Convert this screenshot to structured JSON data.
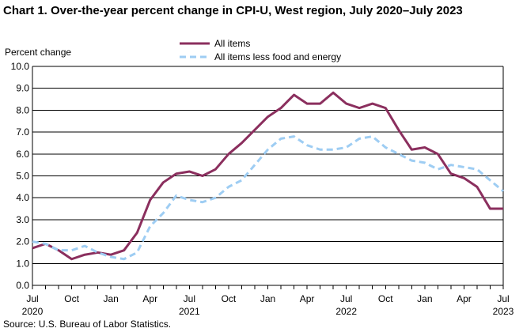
{
  "chart_data": {
    "type": "line",
    "title": "Chart 1. Over-the-year percent change in CPI-U, West region, July 2020–July 2023",
    "ylabel": "Percent change",
    "xlabel": "",
    "ylim": [
      0,
      10
    ],
    "yticks": [
      "0.0",
      "1.0",
      "2.0",
      "3.0",
      "4.0",
      "5.0",
      "6.0",
      "7.0",
      "8.0",
      "9.0",
      "10.0"
    ],
    "xtick_labels": [
      {
        "month": "Jul",
        "year": "2020"
      },
      {
        "month": "Oct",
        "year": ""
      },
      {
        "month": "Jan",
        "year": ""
      },
      {
        "month": "Apr",
        "year": ""
      },
      {
        "month": "Jul",
        "year": "2021"
      },
      {
        "month": "Oct",
        "year": ""
      },
      {
        "month": "Jan",
        "year": ""
      },
      {
        "month": "Apr",
        "year": ""
      },
      {
        "month": "Jul",
        "year": "2022"
      },
      {
        "month": "Oct",
        "year": ""
      },
      {
        "month": "Jan",
        "year": ""
      },
      {
        "month": "Apr",
        "year": ""
      },
      {
        "month": "Jul",
        "year": "2023"
      }
    ],
    "x": [
      "2020-07",
      "2020-08",
      "2020-09",
      "2020-10",
      "2020-11",
      "2020-12",
      "2021-01",
      "2021-02",
      "2021-03",
      "2021-04",
      "2021-05",
      "2021-06",
      "2021-07",
      "2021-08",
      "2021-09",
      "2021-10",
      "2021-11",
      "2021-12",
      "2022-01",
      "2022-02",
      "2022-03",
      "2022-04",
      "2022-05",
      "2022-06",
      "2022-07",
      "2022-08",
      "2022-09",
      "2022-10",
      "2022-11",
      "2022-12",
      "2023-01",
      "2023-02",
      "2023-03",
      "2023-04",
      "2023-05",
      "2023-06",
      "2023-07"
    ],
    "series": [
      {
        "name": "All items",
        "color": "#8b2f5e",
        "style": "solid",
        "values": [
          1.7,
          1.9,
          1.6,
          1.2,
          1.4,
          1.5,
          1.4,
          1.6,
          2.4,
          3.9,
          4.7,
          5.1,
          5.2,
          5.0,
          5.3,
          6.0,
          6.5,
          7.1,
          7.7,
          8.1,
          8.7,
          8.3,
          8.3,
          8.8,
          8.3,
          8.1,
          8.3,
          8.1,
          7.1,
          6.2,
          6.3,
          6.0,
          5.1,
          4.9,
          4.5,
          3.5,
          3.5
        ]
      },
      {
        "name": "All items less food and energy",
        "color": "#9ecdf3",
        "style": "dashed",
        "values": [
          2.0,
          1.9,
          1.6,
          1.6,
          1.8,
          1.5,
          1.3,
          1.2,
          1.5,
          2.7,
          3.3,
          4.1,
          3.9,
          3.8,
          4.0,
          4.5,
          4.8,
          5.5,
          6.2,
          6.7,
          6.8,
          6.4,
          6.2,
          6.2,
          6.3,
          6.7,
          6.8,
          6.3,
          6.0,
          5.7,
          5.6,
          5.3,
          5.5,
          5.4,
          5.3,
          4.8,
          4.3
        ]
      }
    ],
    "grid": true,
    "legend": "top-center"
  },
  "source": "Source: U.S. Bureau of Labor Statistics."
}
